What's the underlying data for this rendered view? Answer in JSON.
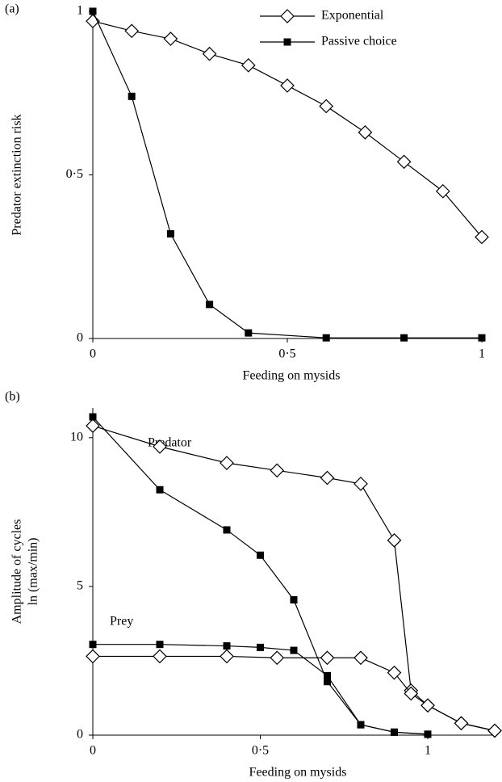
{
  "chart_data": [
    {
      "type": "line",
      "panel_label": "(a)",
      "xlabel": "Feeding on mysids",
      "ylabel": [
        "Predator extinction risk"
      ],
      "xlim": [
        0,
        1
      ],
      "ylim": [
        0,
        1
      ],
      "xticks": [
        0,
        {
          "value": 0.5,
          "label": "0·5"
        },
        1
      ],
      "yticks": [
        0,
        {
          "value": 0.5,
          "label": "0·5"
        },
        1
      ],
      "legend": "top-right",
      "series": [
        {
          "name": "Exponential",
          "color": "#000000",
          "marker": "open-diamond",
          "x": [
            0,
            0.1,
            0.2,
            0.3,
            0.4,
            0.5,
            0.6,
            0.7,
            0.8,
            0.9,
            1
          ],
          "values": [
            0.97,
            0.94,
            0.916,
            0.87,
            0.835,
            0.773,
            0.71,
            0.63,
            0.54,
            0.45,
            0.31
          ]
        },
        {
          "name": "Passive choice",
          "color": "#000000",
          "marker": "filled-square",
          "x": [
            0,
            0.1,
            0.2,
            0.3,
            0.4,
            0.6,
            0.8,
            1
          ],
          "values": [
            1.0,
            0.74,
            0.32,
            0.104,
            0.017,
            0.002,
            0.002,
            0.002
          ]
        }
      ]
    },
    {
      "type": "line",
      "panel_label": "(b)",
      "xlabel": "Feeding on mysids",
      "ylabel": [
        "Amplitude of cycles",
        "ln (max/min)"
      ],
      "xlim": [
        0,
        1.2
      ],
      "ylim": [
        0,
        11
      ],
      "xticks": [
        0,
        {
          "value": 0.5,
          "label": "0·5"
        },
        1
      ],
      "yticks": [
        0,
        5,
        10
      ],
      "annotations": [
        "Predator",
        "Prey"
      ],
      "series": [
        {
          "color": "#000000",
          "marker": "open-diamond",
          "x": [
            0,
            0.2,
            0.4,
            0.55,
            0.7,
            0.8,
            0.9,
            0.95,
            1.0,
            1.1,
            1.2
          ],
          "values": [
            10.4,
            9.7,
            9.15,
            8.9,
            8.65,
            8.45,
            6.55,
            1.5,
            1.0,
            0.4,
            0.15
          ]
        },
        {
          "color": "#000000",
          "marker": "filled-square",
          "x": [
            0,
            0.2,
            0.4,
            0.5,
            0.6,
            0.7,
            0.8,
            0.9,
            1.0
          ],
          "values": [
            10.7,
            8.25,
            6.9,
            6.05,
            4.55,
            1.8,
            0.35,
            0.1,
            0.03
          ]
        },
        {
          "color": "#000000",
          "marker": "open-diamond",
          "x": [
            0,
            0.2,
            0.4,
            0.55,
            0.7,
            0.8,
            0.9,
            0.95,
            1.0,
            1.1,
            1.2
          ],
          "values": [
            2.65,
            2.65,
            2.65,
            2.6,
            2.6,
            2.6,
            2.1,
            1.4,
            1.0,
            0.4,
            0.15
          ]
        },
        {
          "color": "#000000",
          "marker": "filled-square",
          "x": [
            0,
            0.2,
            0.4,
            0.5,
            0.6,
            0.7,
            0.8,
            0.9,
            1.0
          ],
          "values": [
            3.05,
            3.05,
            3.0,
            2.95,
            2.85,
            2.0,
            0.35,
            0.1,
            0.03
          ]
        }
      ]
    }
  ]
}
